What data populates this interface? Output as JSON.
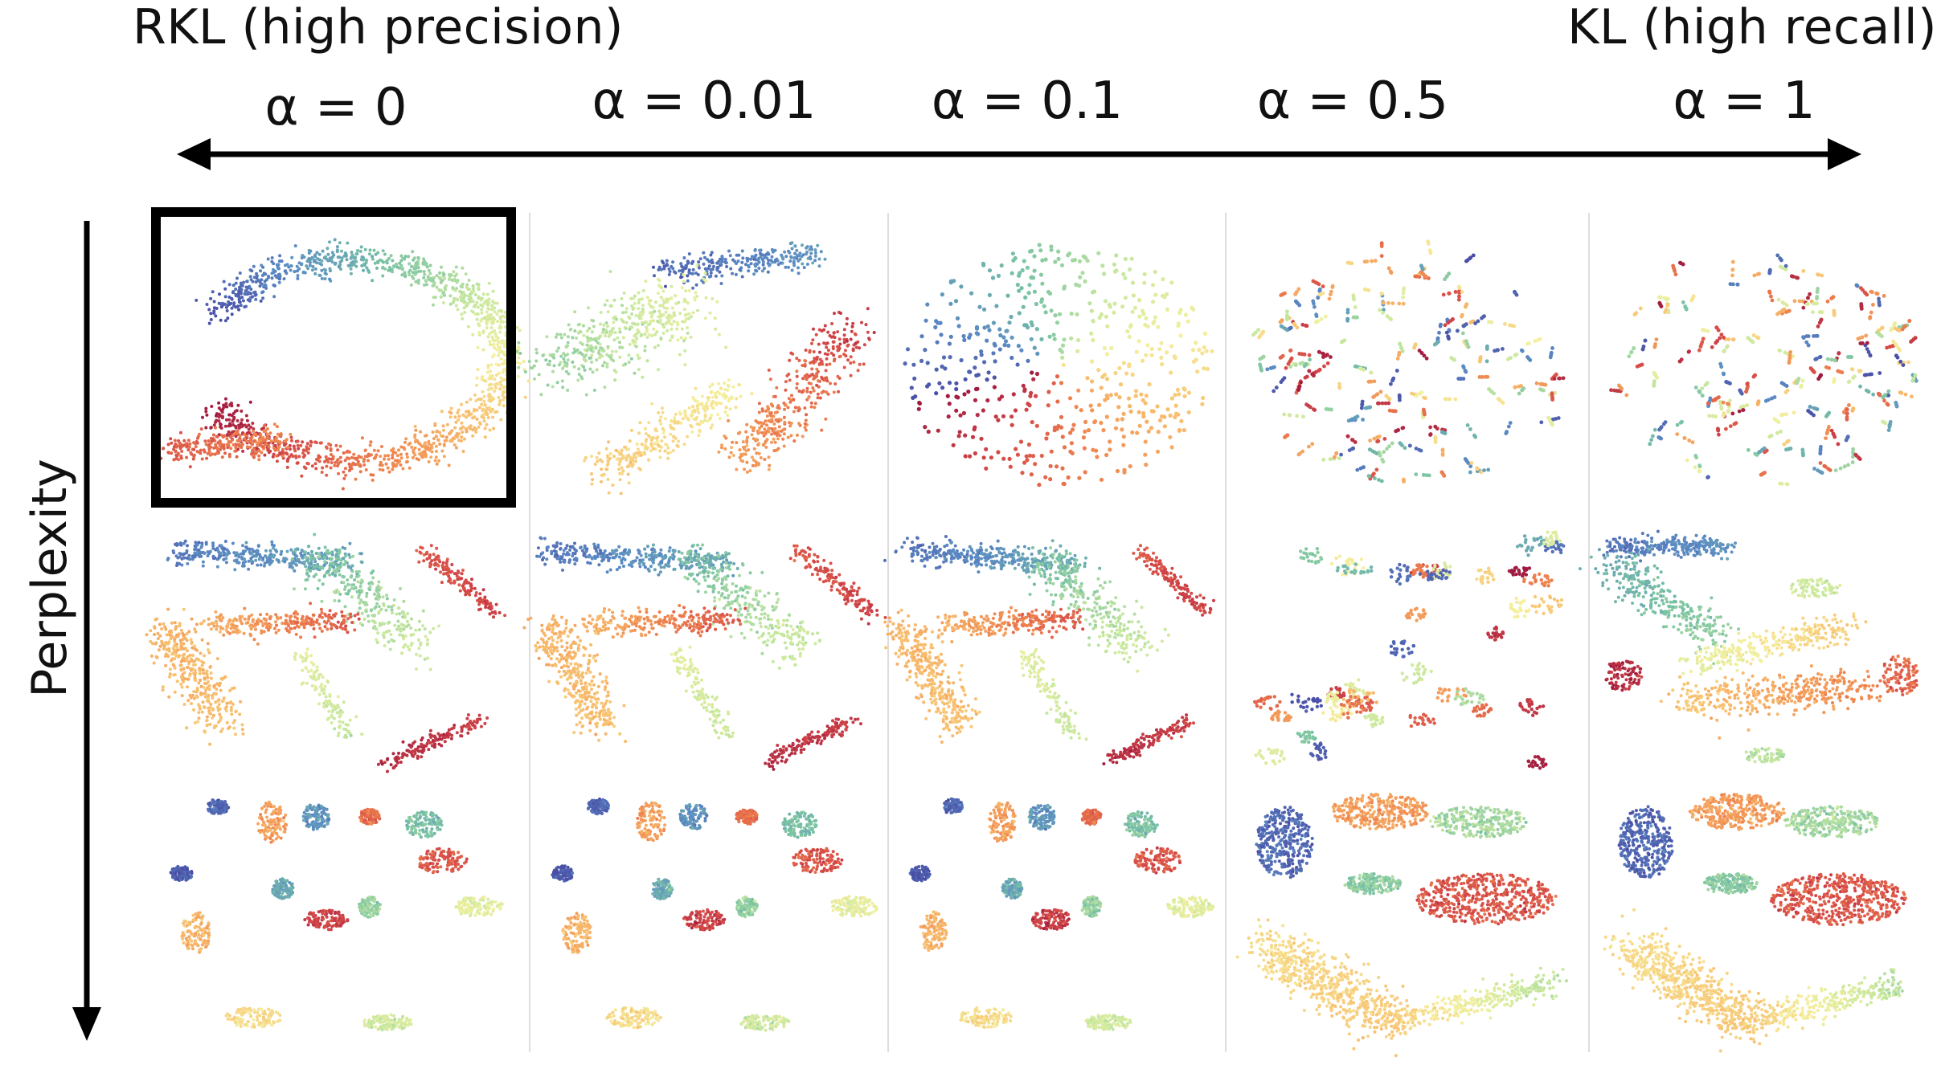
{
  "header": {
    "left_label": "RKL (high precision)",
    "right_label": "KL (high recall)"
  },
  "columns": [
    {
      "alpha_label": "α = 0"
    },
    {
      "alpha_label": "α = 0.01"
    },
    {
      "alpha_label": "α = 0.1"
    },
    {
      "alpha_label": "α = 0.5"
    },
    {
      "alpha_label": "α = 1"
    }
  ],
  "row_axis": {
    "label": "Perplexity"
  },
  "panels": [
    [
      {
        "style": "ring"
      },
      {
        "style": "swirl"
      },
      {
        "style": "sparse-disc"
      },
      {
        "style": "dense-fragments"
      },
      {
        "style": "dense-fragments"
      }
    ],
    [
      {
        "style": "branch"
      },
      {
        "style": "branch"
      },
      {
        "style": "branch"
      },
      {
        "style": "clusters"
      },
      {
        "style": "blobs"
      }
    ],
    [
      {
        "style": "islands"
      },
      {
        "style": "islands"
      },
      {
        "style": "islands"
      },
      {
        "style": "large-blobs"
      },
      {
        "style": "large-blobs"
      }
    ]
  ],
  "highlighted_panel": {
    "row": 0,
    "col": 0
  },
  "colors": {
    "palette": [
      "#4a4ea6",
      "#5b8bc4",
      "#78c2a4",
      "#c8e8a0",
      "#f5f0a0",
      "#f8c070",
      "#f08850",
      "#d64a48",
      "#9e1a40"
    ],
    "axis": "#000000",
    "frame": "#000000",
    "divider": "#dddddd"
  }
}
